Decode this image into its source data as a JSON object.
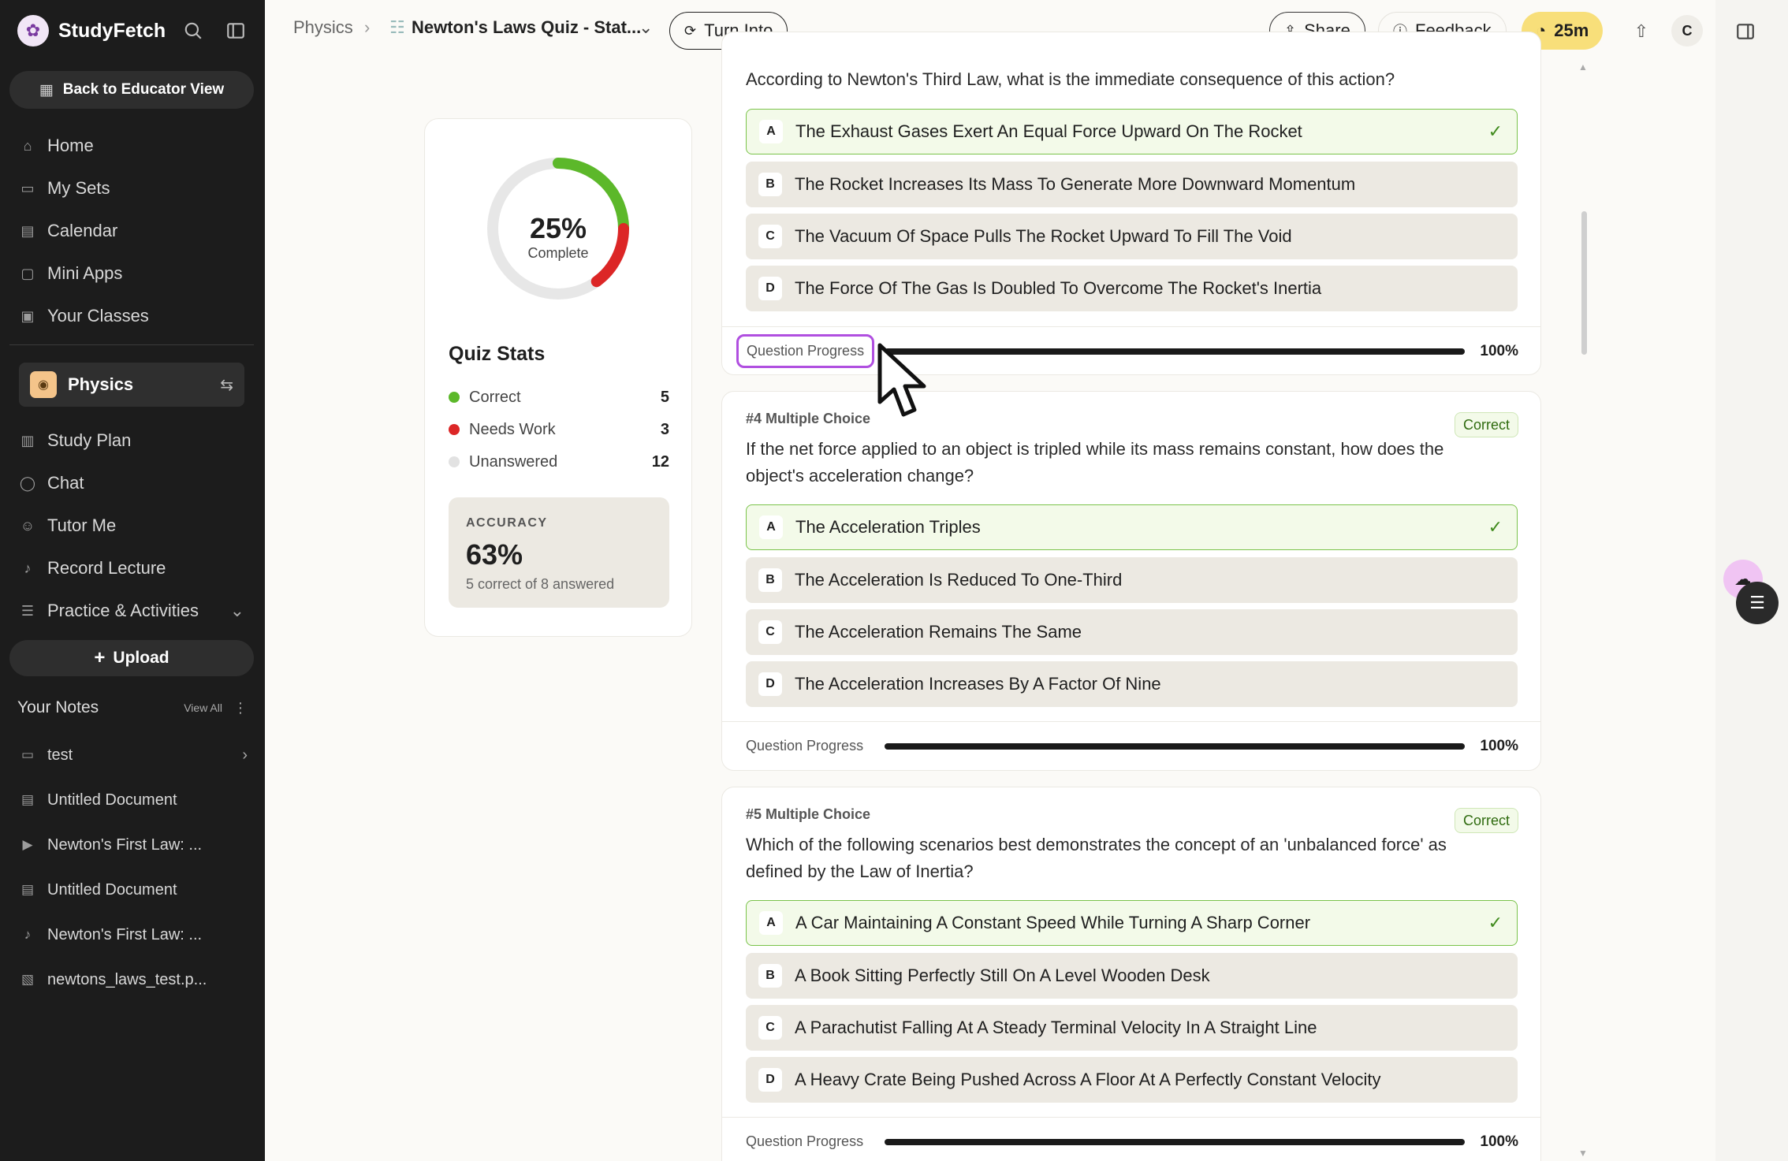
{
  "app": {
    "name": "StudyFetch"
  },
  "sidebar": {
    "educator_button": "Back to Educator View",
    "nav": [
      {
        "label": "Home",
        "icon": "home-icon"
      },
      {
        "label": "My Sets",
        "icon": "folder-icon"
      },
      {
        "label": "Calendar",
        "icon": "calendar-icon"
      },
      {
        "label": "Mini Apps",
        "icon": "app-icon"
      },
      {
        "label": "Your Classes",
        "icon": "class-icon"
      }
    ],
    "subject": "Physics",
    "subject_nav": [
      {
        "label": "Study Plan",
        "icon": "map-icon"
      },
      {
        "label": "Chat",
        "icon": "chat-icon"
      },
      {
        "label": "Tutor Me",
        "icon": "tutor-icon"
      },
      {
        "label": "Record Lecture",
        "icon": "mic-icon"
      },
      {
        "label": "Practice & Activities",
        "icon": "list-icon"
      }
    ],
    "upload_label": "Upload",
    "notes_title": "Your Notes",
    "notes_view_all": "View All",
    "notes": [
      {
        "label": "test",
        "icon": "folder-icon"
      },
      {
        "label": "Untitled Document",
        "icon": "document-icon"
      },
      {
        "label": "Newton's First Law: ...",
        "icon": "video-icon"
      },
      {
        "label": "Untitled Document",
        "icon": "document-icon"
      },
      {
        "label": "Newton's First Law: ...",
        "icon": "mic-icon"
      },
      {
        "label": "newtons_laws_test.p...",
        "icon": "pdf-icon"
      }
    ]
  },
  "header": {
    "breadcrumb_root": "Physics",
    "breadcrumb_current": "Newton's Laws Quiz - Stat...",
    "turn_into": "Turn Into",
    "share": "Share",
    "feedback": "Feedback",
    "timer": "25m",
    "avatar_initial": "C"
  },
  "stats": {
    "percent_label": "25%",
    "percent_sub": "Complete",
    "title": "Quiz Stats",
    "rows": [
      {
        "label": "Correct",
        "count": "5",
        "color": "#5cb82a"
      },
      {
        "label": "Needs Work",
        "count": "3",
        "color": "#dc2626"
      },
      {
        "label": "Unanswered",
        "count": "12",
        "color": "#e2e2e2"
      }
    ],
    "accuracy_label": "ACCURACY",
    "accuracy_value": "63%",
    "accuracy_sub": "5 correct of 8 answered",
    "donut": {
      "correct_fraction": 0.25,
      "needs_work_fraction": 0.15
    }
  },
  "questions": [
    {
      "type": "",
      "badge": "",
      "text": "According to Newton's Third Law, what is the immediate consequence of this action?",
      "options": [
        {
          "letter": "A",
          "text": "The Exhaust Gases Exert An Equal Force Upward On The Rocket",
          "correct": true
        },
        {
          "letter": "B",
          "text": "The Rocket Increases Its Mass To Generate More Downward Momentum",
          "correct": false
        },
        {
          "letter": "C",
          "text": "The Vacuum Of Space Pulls The Rocket Upward To Fill The Void",
          "correct": false
        },
        {
          "letter": "D",
          "text": "The Force Of The Gas Is Doubled To Overcome The Rocket's Inertia",
          "correct": false
        }
      ],
      "progress_label": "Question Progress",
      "progress_pct": "100%",
      "progress_value": 1.0
    },
    {
      "type": "#4 Multiple Choice",
      "badge": "Correct",
      "text": "If the net force applied to an object is tripled while its mass remains constant, how does the object's acceleration change?",
      "options": [
        {
          "letter": "A",
          "text": "The Acceleration Triples",
          "correct": true
        },
        {
          "letter": "B",
          "text": "The Acceleration Is Reduced To One-Third",
          "correct": false
        },
        {
          "letter": "C",
          "text": "The Acceleration Remains The Same",
          "correct": false
        },
        {
          "letter": "D",
          "text": "The Acceleration Increases By A Factor Of Nine",
          "correct": false
        }
      ],
      "progress_label": "Question Progress",
      "progress_pct": "100%",
      "progress_value": 1.0
    },
    {
      "type": "#5 Multiple Choice",
      "badge": "Correct",
      "text": "Which of the following scenarios best demonstrates the concept of an 'unbalanced force' as defined by the Law of Inertia?",
      "options": [
        {
          "letter": "A",
          "text": "A Car Maintaining A Constant Speed While Turning A Sharp Corner",
          "correct": true
        },
        {
          "letter": "B",
          "text": "A Book Sitting Perfectly Still On A Level Wooden Desk",
          "correct": false
        },
        {
          "letter": "C",
          "text": "A Parachutist Falling At A Steady Terminal Velocity In A Straight Line",
          "correct": false
        },
        {
          "letter": "D",
          "text": "A Heavy Crate Being Pushed Across A Floor At A Perfectly Constant Velocity",
          "correct": false
        }
      ],
      "progress_label": "Question Progress",
      "progress_pct": "100%",
      "progress_value": 1.0
    }
  ]
}
